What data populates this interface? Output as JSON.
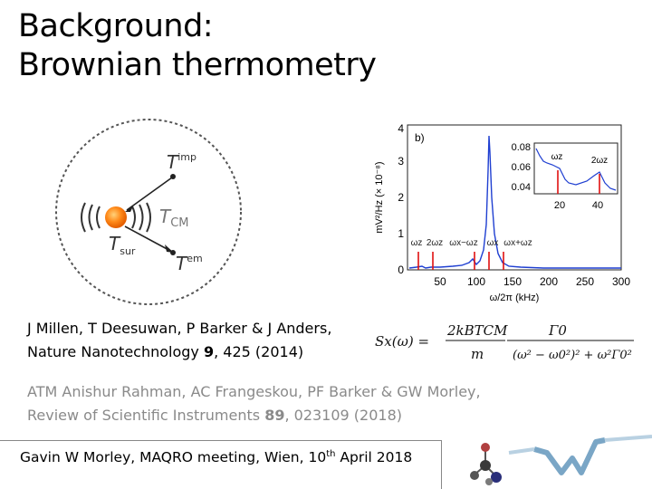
{
  "slide": {
    "title_line1": "Background:",
    "title_line2": "Brownian thermometry"
  },
  "diagram": {
    "t_imp_base": "T",
    "t_imp_sup": "imp",
    "t_cm_base": "T",
    "t_cm_sub": "CM",
    "t_sur_base": "T",
    "t_sur_sub": "sur",
    "t_em_base": "T",
    "t_em_sup": "em"
  },
  "plot": {
    "panel_label": "b)",
    "ylabel": "mV²/Hz (× 10⁻⁸)",
    "xlabel": "ω/2π (kHz)",
    "y_ticks": [
      "0",
      "1",
      "2",
      "3",
      "4"
    ],
    "x_ticks": [
      "50",
      "100",
      "150",
      "200",
      "250",
      "300"
    ],
    "peak_labels": [
      "ωz",
      "2ωz",
      "ωx−ωz",
      "ωx",
      "ωx+ωz"
    ],
    "inset": {
      "y_ticks": [
        "0.04",
        "0.06",
        "0.08"
      ],
      "x_ticks": [
        "20",
        "40"
      ],
      "labels": [
        "ωz",
        "2ωz"
      ]
    },
    "colors": {
      "trace": "#1f3fd1",
      "markers": "#e01010"
    }
  },
  "references": {
    "ref1_line1": "J Millen, T Deesuwan, P Barker & J Anders,",
    "ref1_line2_pre": "Nature Nanotechnology ",
    "ref1_volume": "9",
    "ref1_line2_post": ", 425 (2014)",
    "ref2_line1": "ATM Anishur Rahman, AC Frangeskou, PF Barker & GW Morley,",
    "ref2_line2_pre": "Review of Scientific Instruments ",
    "ref2_volume": "89",
    "ref2_line2_post": ", 023109 (2018)"
  },
  "formula": {
    "lhs": "Sx(ω) =",
    "numerator1": "2kBTCM",
    "denominator1": "m",
    "numerator2": "Γ0",
    "denominator2": "(ω² − ω0²)² + ω²Γ0²"
  },
  "footer": {
    "text_pre": "Gavin W Morley, MAQRO meeting, Wien, 10",
    "sup": "th",
    "text_post": " April 2018"
  }
}
